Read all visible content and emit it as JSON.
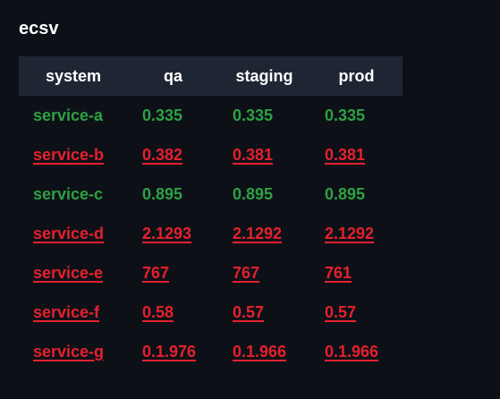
{
  "page": {
    "title": "ecsv"
  },
  "colors": {
    "background": "#0d1117",
    "header_background": "#1f2633",
    "match": "#2ea043",
    "mismatch": "#e5202e"
  },
  "table": {
    "headers": [
      "system",
      "qa",
      "staging",
      "prod"
    ],
    "rows": [
      {
        "name": "service-a",
        "qa": "0.335",
        "staging": "0.335",
        "prod": "0.335",
        "status": "ok"
      },
      {
        "name": "service-b",
        "qa": "0.382",
        "staging": "0.381",
        "prod": "0.381",
        "status": "bad"
      },
      {
        "name": "service-c",
        "qa": "0.895",
        "staging": "0.895",
        "prod": "0.895",
        "status": "ok"
      },
      {
        "name": "service-d",
        "qa": "2.1293",
        "staging": "2.1292",
        "prod": "2.1292",
        "status": "bad"
      },
      {
        "name": "service-e",
        "qa": "767",
        "staging": "767",
        "prod": "761",
        "status": "bad"
      },
      {
        "name": "service-f",
        "qa": "0.58",
        "staging": "0.57",
        "prod": "0.57",
        "status": "bad"
      },
      {
        "name": "service-g",
        "qa": "0.1.976",
        "staging": "0.1.966",
        "prod": "0.1.966",
        "status": "bad"
      }
    ]
  }
}
